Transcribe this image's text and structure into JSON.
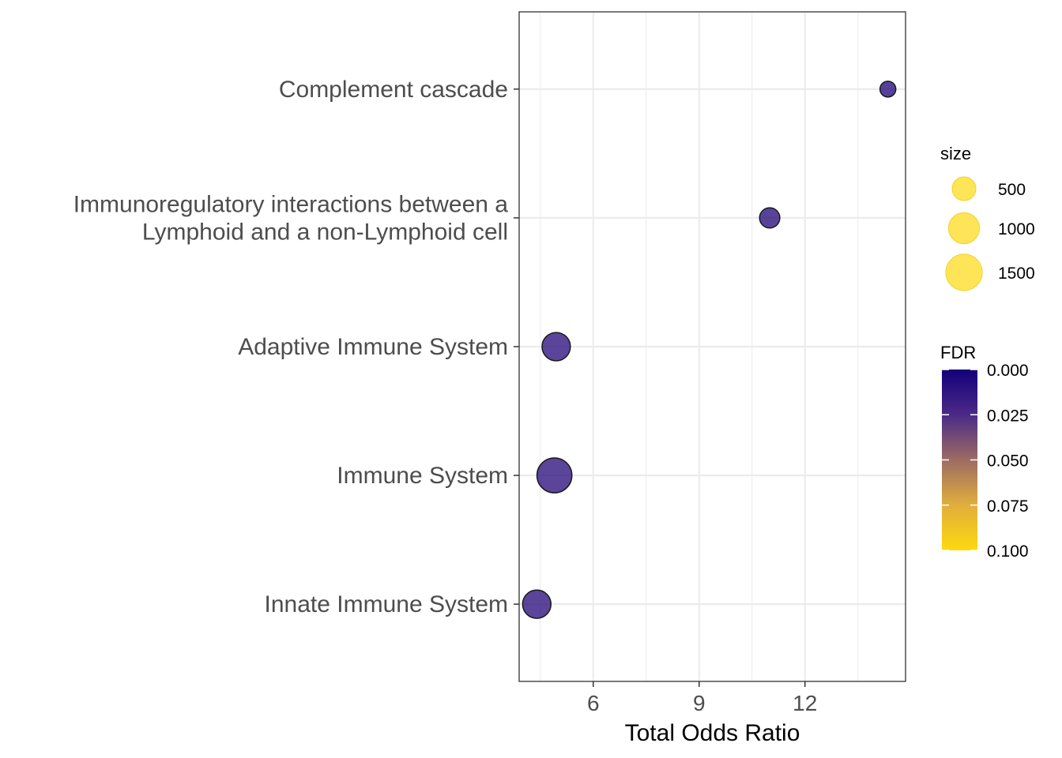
{
  "chart_data": {
    "type": "scatter",
    "title": "",
    "xlabel": "Total Odds Ratio",
    "ylabel": "",
    "xlim": [
      3.9,
      14.85
    ],
    "xticks": [
      6,
      9,
      12
    ],
    "categories": [
      "Innate Immune System",
      "Immune System",
      "Adaptive Immune System",
      "Immunoregulatory interactions between a Lymphoid and a non-Lymphoid cell",
      "Complement cascade"
    ],
    "category_lines": {
      "Immunoregulatory interactions between a Lymphoid and a non-Lymphoid cell": [
        "Immunoregulatory interactions between a",
        "Lymphoid and a non-Lymphoid cell"
      ]
    },
    "points": [
      {
        "category": "Complement cascade",
        "x": 14.35,
        "size": 150,
        "fdr": 0.01
      },
      {
        "category": "Immunoregulatory interactions between a Lymphoid and a non-Lymphoid cell",
        "x": 11.0,
        "size": 320,
        "fdr": 0.012
      },
      {
        "category": "Adaptive Immune System",
        "x": 4.95,
        "size": 800,
        "fdr": 0.013
      },
      {
        "category": "Immune System",
        "x": 4.9,
        "size": 1350,
        "fdr": 0.013
      },
      {
        "category": "Innate Immune System",
        "x": 4.4,
        "size": 800,
        "fdr": 0.013
      }
    ],
    "grid": true,
    "legend_position": "right",
    "size_legend": {
      "title": "size",
      "breaks": [
        500,
        1000,
        1500
      ],
      "color": "#FDE03A"
    },
    "color_legend": {
      "title": "FDR",
      "breaks": [
        "0.000",
        "0.025",
        "0.050",
        "0.075",
        "0.100"
      ],
      "range": [
        0,
        0.1
      ],
      "colors": [
        "#14007A",
        "#4B2A87",
        "#9D6C63",
        "#E1AE3C",
        "#FDD90E"
      ]
    }
  }
}
